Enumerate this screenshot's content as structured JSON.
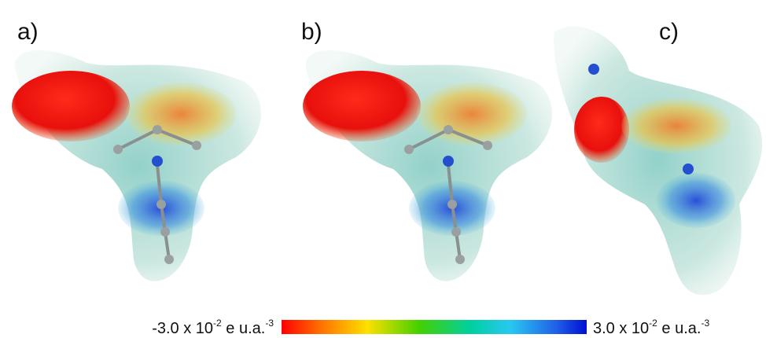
{
  "panels": [
    {
      "label": "a)"
    },
    {
      "label": "b)"
    },
    {
      "label": "c)"
    }
  ],
  "colorbar": {
    "min_label": {
      "base": "-3.0 x 10",
      "exp": "-2",
      "unit": " e u.a.",
      "unit_exp": "-3"
    },
    "max_label": {
      "base": "3.0 x 10",
      "exp": "-2",
      "unit": " e u.a.",
      "unit_exp": "-3"
    }
  }
}
